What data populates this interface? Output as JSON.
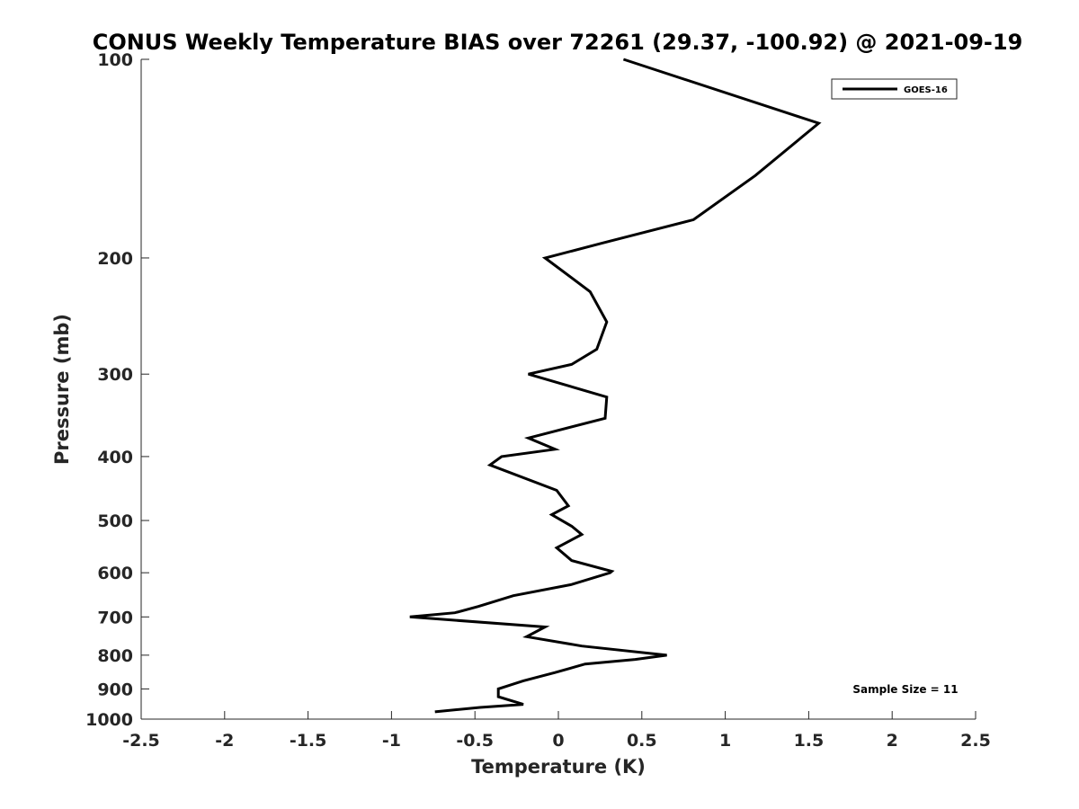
{
  "chart_data": {
    "type": "line",
    "title": "CONUS Weekly Temperature BIAS over 72261 (29.37, -100.92) @ 2021-09-19",
    "xlabel": "Temperature (K)",
    "ylabel": "Pressure (mb)",
    "xlim": [
      -2.5,
      2.5
    ],
    "ylim": [
      100,
      1000
    ],
    "y_scale": "log",
    "y_reversed": true,
    "x_ticks": [
      -2.5,
      -2,
      -1.5,
      -1,
      -0.5,
      0,
      0.5,
      1,
      1.5,
      2,
      2.5
    ],
    "x_tick_labels": [
      "-2.5",
      "-2",
      "-1.5",
      "-1",
      "-0.5",
      "0",
      "0.5",
      "1",
      "1.5",
      "2",
      "2.5"
    ],
    "y_ticks": [
      100,
      200,
      300,
      400,
      500,
      600,
      700,
      800,
      900,
      1000
    ],
    "y_tick_labels": [
      "100",
      "200",
      "300",
      "400",
      "500",
      "600",
      "700",
      "800",
      "900",
      "1000"
    ],
    "grid": false,
    "legend_position": "top-right",
    "series": [
      {
        "name": "GOES-16",
        "color": "#000000",
        "points": [
          {
            "p": 100,
            "t": 0.39
          },
          {
            "p": 125,
            "t": 1.56
          },
          {
            "p": 150,
            "t": 1.18
          },
          {
            "p": 175,
            "t": 0.81
          },
          {
            "p": 190,
            "t": 0.26
          },
          {
            "p": 200,
            "t": -0.08
          },
          {
            "p": 225,
            "t": 0.19
          },
          {
            "p": 250,
            "t": 0.29
          },
          {
            "p": 275,
            "t": 0.23
          },
          {
            "p": 290,
            "t": 0.08
          },
          {
            "p": 300,
            "t": -0.18
          },
          {
            "p": 325,
            "t": 0.29
          },
          {
            "p": 350,
            "t": 0.28
          },
          {
            "p": 375,
            "t": -0.18
          },
          {
            "p": 390,
            "t": -0.02
          },
          {
            "p": 400,
            "t": -0.34
          },
          {
            "p": 412,
            "t": -0.41
          },
          {
            "p": 450,
            "t": -0.01
          },
          {
            "p": 475,
            "t": 0.06
          },
          {
            "p": 490,
            "t": -0.04
          },
          {
            "p": 510,
            "t": 0.08
          },
          {
            "p": 525,
            "t": 0.14
          },
          {
            "p": 550,
            "t": -0.01
          },
          {
            "p": 575,
            "t": 0.08
          },
          {
            "p": 597,
            "t": 0.32
          },
          {
            "p": 600,
            "t": 0.31
          },
          {
            "p": 625,
            "t": 0.08
          },
          {
            "p": 650,
            "t": -0.27
          },
          {
            "p": 675,
            "t": -0.48
          },
          {
            "p": 690,
            "t": -0.62
          },
          {
            "p": 700,
            "t": -0.89
          },
          {
            "p": 725,
            "t": -0.08
          },
          {
            "p": 750,
            "t": -0.19
          },
          {
            "p": 775,
            "t": 0.14
          },
          {
            "p": 800,
            "t": 0.65
          },
          {
            "p": 812,
            "t": 0.46
          },
          {
            "p": 825,
            "t": 0.16
          },
          {
            "p": 850,
            "t": -0.02
          },
          {
            "p": 875,
            "t": -0.21
          },
          {
            "p": 900,
            "t": -0.36
          },
          {
            "p": 925,
            "t": -0.36
          },
          {
            "p": 950,
            "t": -0.21
          },
          {
            "p": 960,
            "t": -0.47
          },
          {
            "p": 975,
            "t": -0.74
          }
        ]
      }
    ],
    "annotations": [
      {
        "text": "Sample Size = 11",
        "position": "bottom-right"
      }
    ]
  }
}
